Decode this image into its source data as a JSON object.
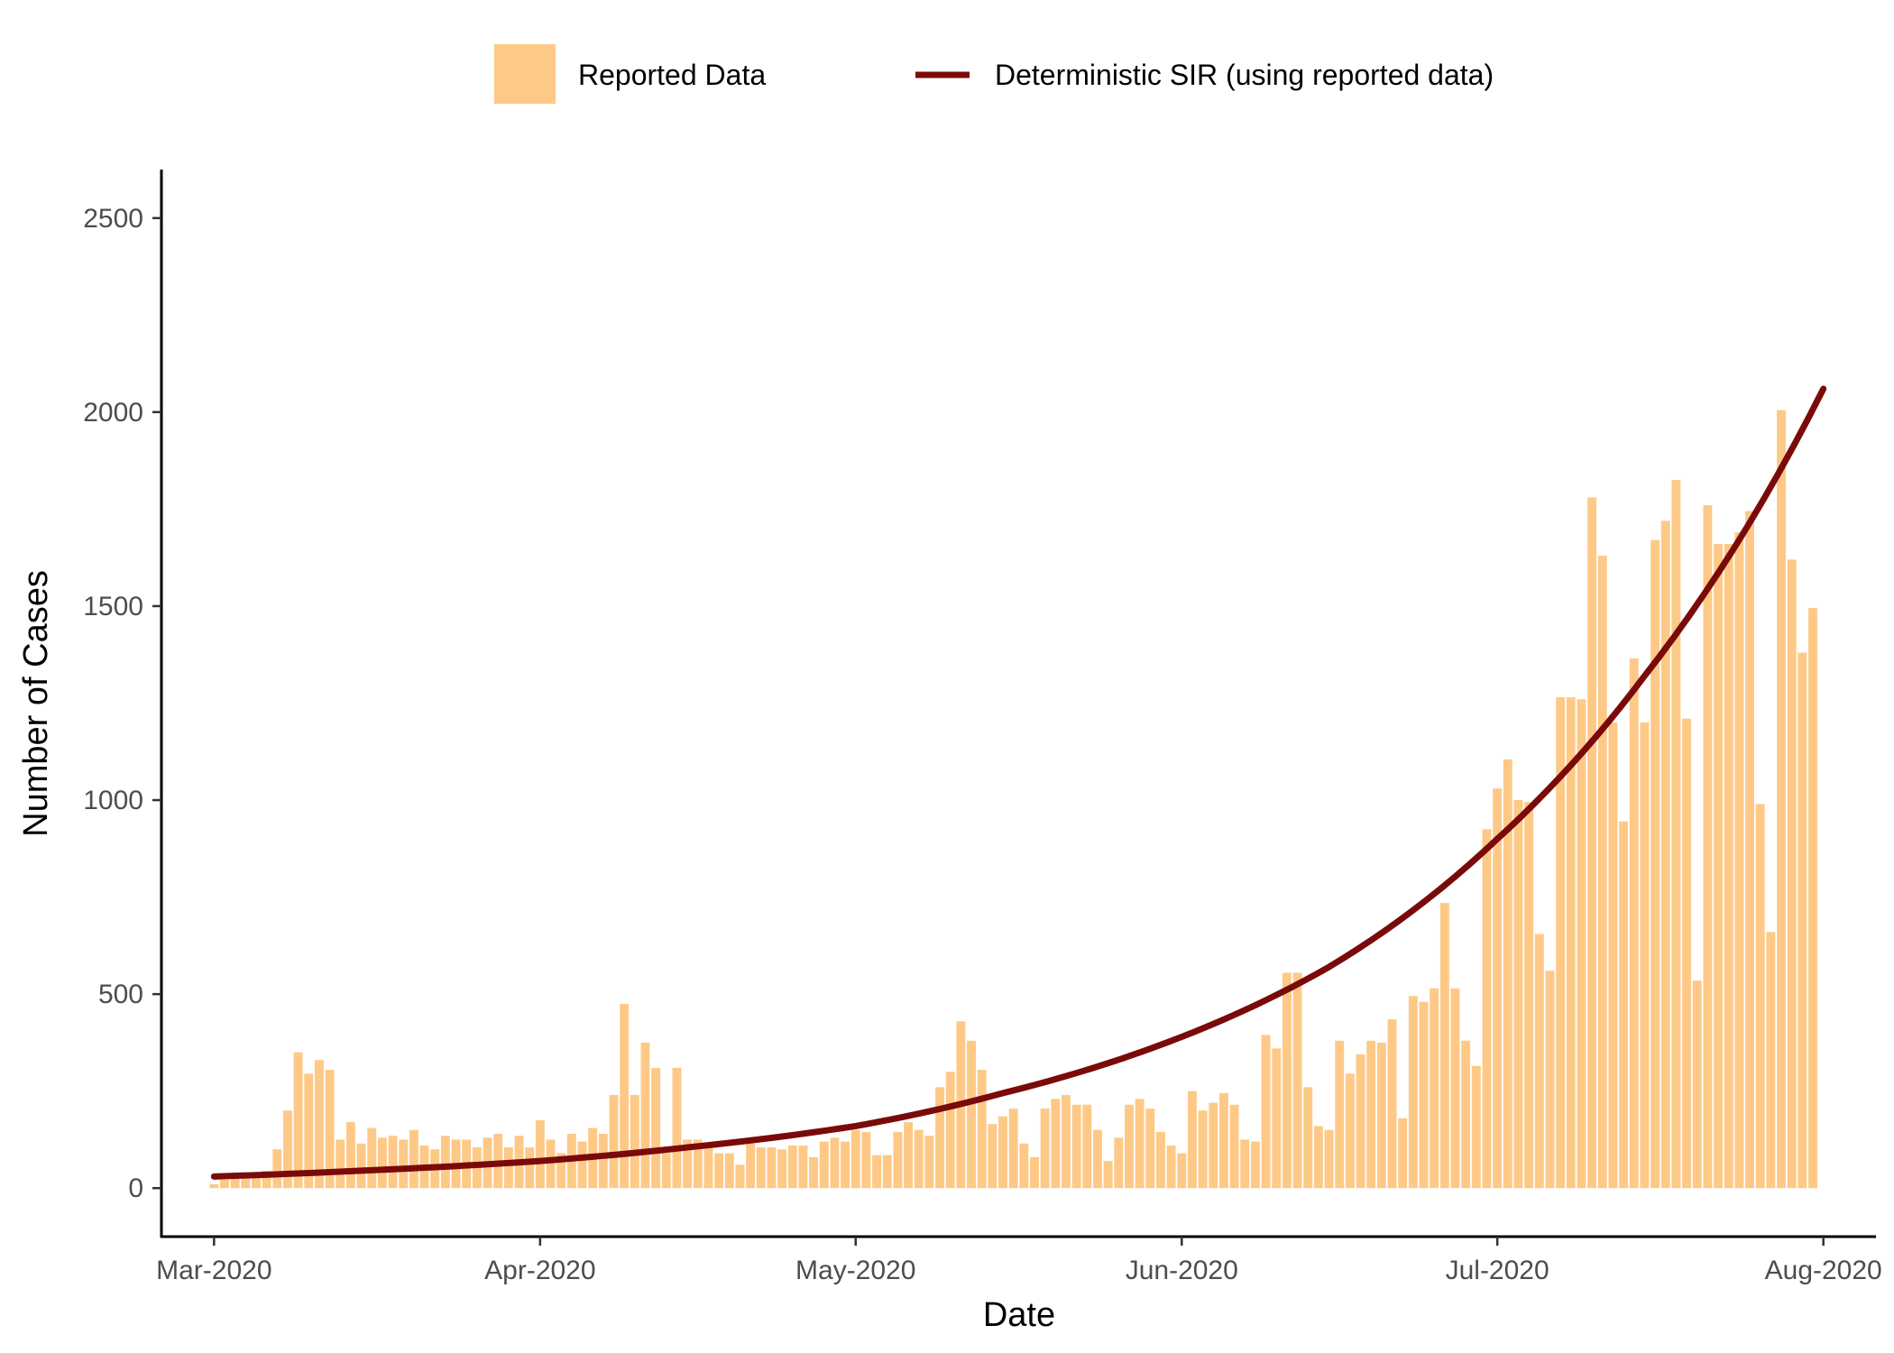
{
  "chart_data": {
    "type": "bar",
    "xlabel": "Date",
    "ylabel": "Number of Cases",
    "ylim": [
      -125,
      2625
    ],
    "y_ticks": [
      0,
      500,
      1000,
      1500,
      2000,
      2500
    ],
    "x_axis": {
      "type": "date",
      "range": [
        "2020-02-25",
        "2020-08-06"
      ],
      "ticks": [
        {
          "date": "2020-03-01",
          "label": "Mar-2020"
        },
        {
          "date": "2020-04-01",
          "label": "Apr-2020"
        },
        {
          "date": "2020-05-01",
          "label": "May-2020"
        },
        {
          "date": "2020-06-01",
          "label": "Jun-2020"
        },
        {
          "date": "2020-07-01",
          "label": "Jul-2020"
        },
        {
          "date": "2020-08-01",
          "label": "Aug-2020"
        }
      ]
    },
    "grid": false,
    "legend": {
      "position": "top",
      "entries": [
        {
          "label": "Reported Data",
          "kind": "bar",
          "color": "#FEC987"
        },
        {
          "label": "Deterministic SIR (using reported data)",
          "kind": "line",
          "color": "#7A0A0A"
        }
      ]
    },
    "series": [
      {
        "name": "Reported Data",
        "kind": "bar",
        "color": "#FEC987",
        "start_date": "2020-03-01",
        "values": [
          10,
          22,
          25,
          35,
          40,
          45,
          100,
          200,
          350,
          295,
          330,
          305,
          125,
          170,
          115,
          155,
          130,
          135,
          125,
          150,
          110,
          100,
          135,
          125,
          125,
          105,
          130,
          140,
          105,
          135,
          105,
          175,
          125,
          90,
          140,
          120,
          155,
          140,
          240,
          475,
          240,
          375,
          310,
          90,
          310,
          125,
          125,
          105,
          90,
          90,
          60,
          115,
          105,
          105,
          100,
          110,
          110,
          80,
          120,
          130,
          120,
          150,
          145,
          85,
          85,
          145,
          170,
          150,
          135,
          260,
          300,
          430,
          380,
          305,
          165,
          185,
          205,
          115,
          80,
          205,
          230,
          240,
          215,
          215,
          150,
          70,
          130,
          215,
          230,
          205,
          145,
          110,
          90,
          250,
          200,
          220,
          245,
          215,
          125,
          120,
          395,
          360,
          555,
          555,
          260,
          160,
          150,
          380,
          295,
          345,
          380,
          375,
          435,
          180,
          495,
          480,
          515,
          735,
          515,
          380,
          315,
          925,
          1030,
          1105,
          1000,
          995,
          655,
          560,
          1265,
          1265,
          1260,
          1780,
          1630,
          1200,
          945,
          1365,
          1200,
          1670,
          1720,
          1825,
          1210,
          535,
          1760,
          1660,
          1660,
          1690,
          1745,
          990,
          660,
          2005,
          1620,
          1380,
          1495
        ]
      },
      {
        "name": "Deterministic SIR (using reported data)",
        "kind": "line",
        "color": "#7A0A0A",
        "points": [
          {
            "date": "2020-03-01",
            "value": 30
          },
          {
            "date": "2020-03-15",
            "value": 45
          },
          {
            "date": "2020-04-01",
            "value": 70
          },
          {
            "date": "2020-04-15",
            "value": 105
          },
          {
            "date": "2020-05-01",
            "value": 160
          },
          {
            "date": "2020-05-15",
            "value": 245
          },
          {
            "date": "2020-06-01",
            "value": 390
          },
          {
            "date": "2020-06-15",
            "value": 570
          },
          {
            "date": "2020-07-01",
            "value": 900
          },
          {
            "date": "2020-07-15",
            "value": 1320
          },
          {
            "date": "2020-08-01",
            "value": 2060
          }
        ]
      }
    ]
  }
}
